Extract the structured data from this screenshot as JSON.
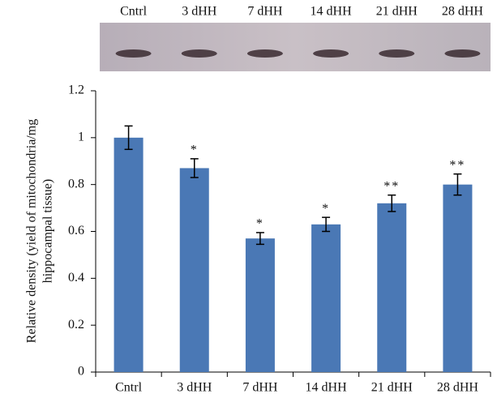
{
  "chart_data": {
    "type": "bar",
    "categories": [
      "Cntrl",
      "3 dHH",
      "7 dHH",
      "14 dHH",
      "21 dHH",
      "28 dHH"
    ],
    "values": [
      1.0,
      0.87,
      0.57,
      0.63,
      0.72,
      0.8
    ],
    "errors": [
      0.05,
      0.04,
      0.025,
      0.03,
      0.035,
      0.045
    ],
    "significance": [
      null,
      "*",
      "*",
      "*",
      "**",
      "**"
    ],
    "color": "#4a78b5",
    "ylabel": [
      "Relative density (yield of mitochondria/mg",
      "hippocampal tissue)"
    ],
    "ylim": [
      0,
      1.2
    ],
    "yticks": [
      0,
      0.2,
      0.4,
      0.6,
      0.8,
      1,
      1.2
    ]
  }
}
